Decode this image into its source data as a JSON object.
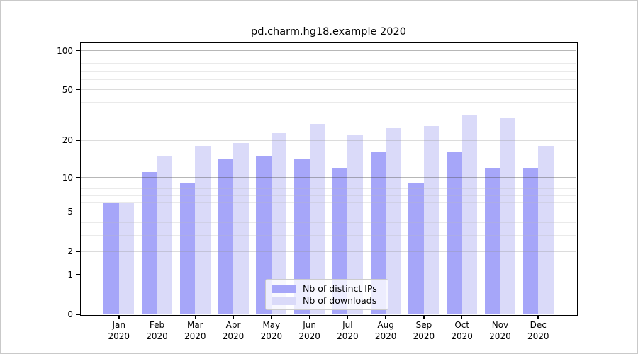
{
  "title": "pd.charm.hg18.example 2020",
  "chart_data": {
    "type": "bar",
    "title": "pd.charm.hg18.example 2020",
    "categories": [
      "Jan",
      "Feb",
      "Mar",
      "Apr",
      "May",
      "Jun",
      "Jul",
      "Aug",
      "Sep",
      "Oct",
      "Nov",
      "Dec"
    ],
    "year": "2020",
    "series": [
      {
        "name": "Nb of distinct IPs",
        "color": "#a6a6f9",
        "values": [
          6,
          11,
          9,
          14,
          15,
          14,
          12,
          16,
          9,
          16,
          12,
          12
        ]
      },
      {
        "name": "Nb of downloads",
        "color": "#dadaf9",
        "values": [
          6,
          15,
          18,
          19,
          23,
          27,
          22,
          25,
          26,
          32,
          30,
          18
        ]
      }
    ],
    "yscale": "log10(1+y)",
    "ylim": [
      0,
      115
    ],
    "yticks": [
      0,
      1,
      2,
      5,
      10,
      20,
      50,
      100
    ],
    "ytick_labels": [
      "0",
      "1",
      "2",
      "5",
      "10",
      "20",
      "50",
      "100"
    ],
    "gridlines": {
      "major": [
        1,
        10,
        100
      ],
      "medium": [
        2,
        5,
        20,
        50
      ],
      "minor": [
        3,
        4,
        6,
        7,
        8,
        9,
        30,
        40,
        60,
        70,
        80,
        90
      ]
    },
    "legend": {
      "position": "lower center"
    },
    "grid": true
  }
}
